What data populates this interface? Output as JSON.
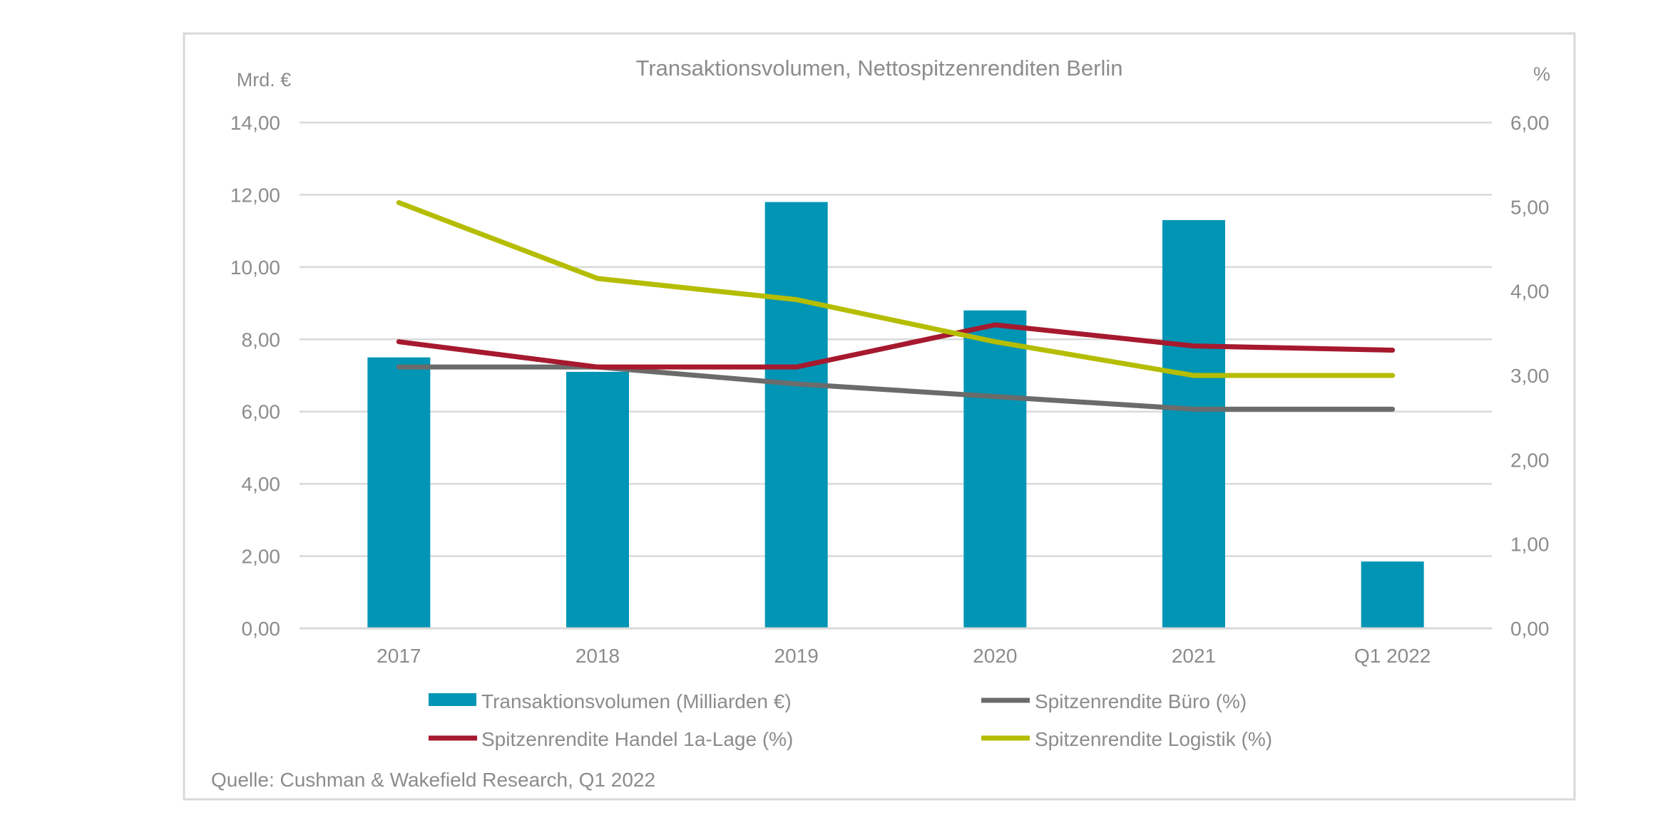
{
  "chart_data": {
    "type": "bar+line",
    "title": "Transaktionsvolumen, Nettospitzenrenditen Berlin",
    "categories": [
      "2017",
      "2018",
      "2019",
      "2020",
      "2021",
      "Q1 2022"
    ],
    "y_left": {
      "unit": "Mrd. €",
      "range": [
        0,
        14
      ],
      "ticks": [
        "0,00",
        "2,00",
        "4,00",
        "6,00",
        "8,00",
        "10,00",
        "12,00",
        "14,00"
      ],
      "tick_values": [
        0,
        2,
        4,
        6,
        8,
        10,
        12,
        14
      ]
    },
    "y_right": {
      "unit": "%",
      "range": [
        0,
        6
      ],
      "ticks": [
        "0,00",
        "1,00",
        "2,00",
        "3,00",
        "4,00",
        "5,00",
        "6,00"
      ],
      "tick_values": [
        0,
        1,
        2,
        3,
        4,
        5,
        6
      ]
    },
    "series": [
      {
        "name": "Transaktionsvolumen (Milliarden €)",
        "kind": "bar",
        "axis": "left",
        "color": "#0095b5",
        "values": [
          7.5,
          7.1,
          11.8,
          8.8,
          11.3,
          1.85
        ]
      },
      {
        "name": "Spitzenrendite Büro (%)",
        "kind": "line",
        "axis": "right",
        "color": "#6b6b6b",
        "values": [
          3.1,
          3.1,
          2.9,
          2.75,
          2.6,
          2.6
        ]
      },
      {
        "name": "Spitzenrendite Handel 1a-Lage (%)",
        "kind": "line",
        "axis": "right",
        "color": "#a6192e",
        "values": [
          3.4,
          3.1,
          3.1,
          3.6,
          3.35,
          3.3
        ]
      },
      {
        "name": "Spitzenrendite Logistik (%)",
        "kind": "line",
        "axis": "right",
        "color": "#b5bd00",
        "values": [
          5.05,
          4.15,
          3.9,
          3.4,
          3.0,
          3.0
        ]
      }
    ],
    "legend_position": "bottom",
    "grid": true,
    "source": "Quelle: Cushman & Wakefield Research, Q1 2022"
  }
}
